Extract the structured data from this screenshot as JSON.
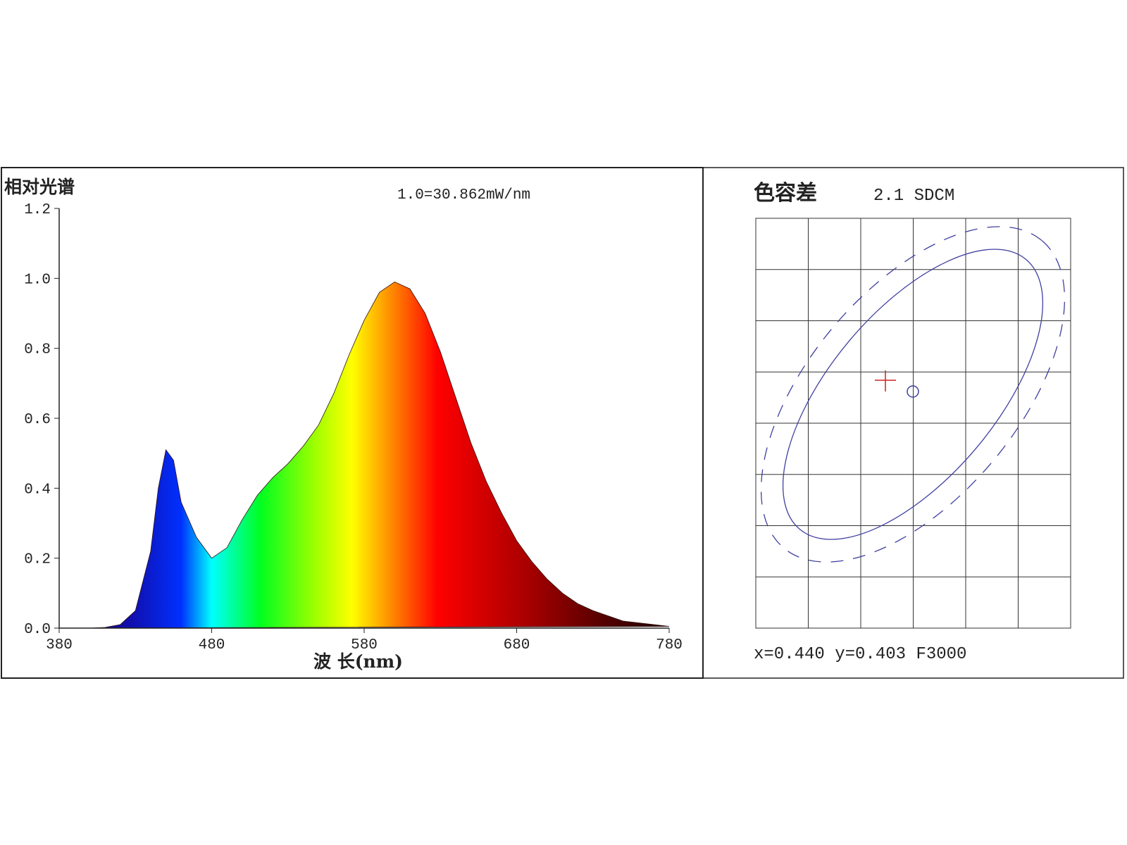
{
  "chart_data": [
    {
      "type": "area",
      "title": "相对光谱",
      "annotation": "1.0=30.862mW/nm",
      "xlabel": "波 长(nm)",
      "x": [
        380,
        390,
        400,
        410,
        420,
        430,
        440,
        445,
        450,
        455,
        460,
        470,
        480,
        490,
        500,
        510,
        520,
        530,
        540,
        550,
        560,
        570,
        580,
        590,
        600,
        610,
        620,
        630,
        640,
        650,
        660,
        670,
        680,
        690,
        700,
        710,
        720,
        730,
        740,
        750,
        760,
        770,
        780
      ],
      "values": [
        0,
        0,
        0,
        0.002,
        0.01,
        0.05,
        0.22,
        0.4,
        0.51,
        0.48,
        0.36,
        0.26,
        0.2,
        0.23,
        0.31,
        0.38,
        0.43,
        0.47,
        0.52,
        0.58,
        0.67,
        0.78,
        0.88,
        0.96,
        0.99,
        0.97,
        0.9,
        0.79,
        0.66,
        0.53,
        0.42,
        0.33,
        0.25,
        0.19,
        0.14,
        0.1,
        0.07,
        0.05,
        0.035,
        0.02,
        0.015,
        0.01,
        0.005
      ],
      "xlim": [
        380,
        780
      ],
      "xticks": [
        380,
        480,
        580,
        680,
        780
      ],
      "ylim": [
        0,
        1.2
      ],
      "yticks": [
        {
          "value": 0,
          "label": "0.0"
        },
        0.2,
        0.4,
        0.6,
        0.8,
        {
          "value": 1,
          "label": "1.0"
        },
        1.2
      ]
    },
    {
      "type": "sdcm",
      "title": "色容差",
      "subtitle": "2.1 SDCM",
      "footer": "x=0.440 y=0.403 F3000"
    }
  ]
}
